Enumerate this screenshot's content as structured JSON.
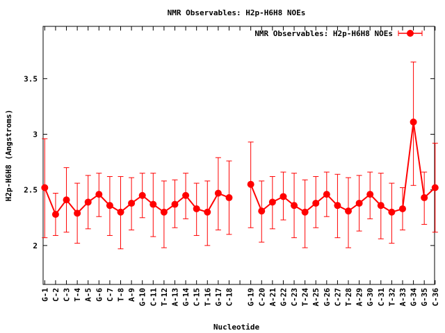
{
  "chart_data": {
    "type": "line",
    "title": "NMR Observables: H2p-H6H8 NOEs",
    "xlabel": "Nucleotide",
    "ylabel": "H2p-H6H8 (Angstroms)",
    "ylim": [
      1.65,
      3.97
    ],
    "yticks": [
      2,
      2.5,
      3,
      3.5
    ],
    "ytick_labels": [
      "2",
      "2.5",
      "3",
      "3.5"
    ],
    "legend": {
      "label": "NMR Observables: H2p-H6H8 NOEs",
      "position": "top-right"
    },
    "series_color": "#ff0000",
    "grid": false,
    "x_positions": [
      1,
      2,
      3,
      4,
      5,
      6,
      7,
      8,
      9,
      10,
      11,
      12,
      13,
      14,
      15,
      16,
      17,
      18,
      19,
      20,
      21,
      22,
      23,
      24,
      25,
      26,
      27,
      28,
      29,
      30,
      31,
      32,
      33,
      34,
      35,
      36,
      37
    ],
    "xlim": [
      0.85,
      36.95
    ],
    "categories": [
      "G-1",
      "C-2",
      "C-3",
      "T-4",
      "A-5",
      "G-6",
      "C-7",
      "T-8",
      "A-9",
      "G-10",
      "C-11",
      "T-12",
      "A-13",
      "G-14",
      "C-15",
      "T-16",
      "G-17",
      "C-18",
      "",
      "G-19",
      "C-20",
      "A-21",
      "G-22",
      "C-23",
      "T-24",
      "A-25",
      "G-26",
      "C-27",
      "T-28",
      "A-29",
      "G-30",
      "C-31",
      "T-32",
      "A-33",
      "G-34",
      "G-35",
      "C-36"
    ],
    "series": [
      {
        "name": "NMR Observables: H2p-H6H8 NOEs",
        "values": [
          2.52,
          2.28,
          2.41,
          2.29,
          2.39,
          2.46,
          2.36,
          2.3,
          2.38,
          2.45,
          2.37,
          2.3,
          2.37,
          2.45,
          2.33,
          2.3,
          2.47,
          2.43,
          null,
          2.55,
          2.31,
          2.39,
          2.44,
          2.36,
          2.3,
          2.38,
          2.46,
          2.36,
          2.31,
          2.38,
          2.46,
          2.36,
          2.3,
          2.33,
          3.11,
          2.43,
          2.52
        ],
        "err_low": [
          2.07,
          2.09,
          2.12,
          2.02,
          2.15,
          2.26,
          2.09,
          1.97,
          2.14,
          2.25,
          2.08,
          1.98,
          2.16,
          2.24,
          2.09,
          2.0,
          2.14,
          2.1,
          null,
          2.16,
          2.03,
          2.15,
          2.23,
          2.07,
          1.98,
          2.16,
          2.26,
          2.07,
          1.98,
          2.13,
          2.24,
          2.06,
          2.02,
          2.14,
          2.54,
          2.19,
          2.12
        ],
        "err_high": [
          2.96,
          2.47,
          2.7,
          2.56,
          2.63,
          2.65,
          2.62,
          2.62,
          2.61,
          2.65,
          2.65,
          2.58,
          2.59,
          2.65,
          2.56,
          2.58,
          2.79,
          2.76,
          null,
          2.93,
          2.58,
          2.62,
          2.66,
          2.65,
          2.59,
          2.62,
          2.66,
          2.64,
          2.61,
          2.63,
          2.66,
          2.65,
          2.56,
          2.52,
          3.65,
          2.66,
          2.92
        ]
      }
    ]
  }
}
